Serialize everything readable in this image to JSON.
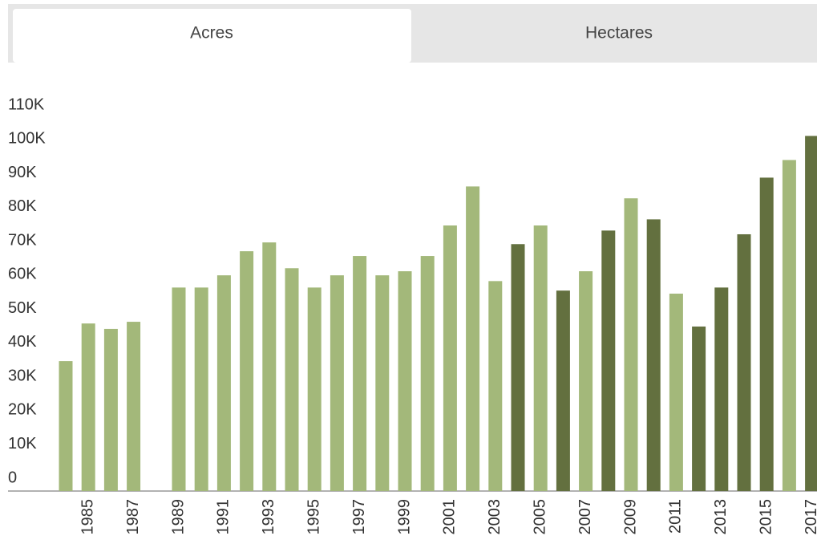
{
  "tabs": [
    "Acres",
    "Hectares"
  ],
  "chart_data": {
    "type": "bar",
    "categories": [
      null,
      "1985",
      null,
      "1987",
      null,
      "1989",
      null,
      "1991",
      null,
      "1993",
      null,
      "1995",
      null,
      "1997",
      null,
      "1999",
      null,
      "2001",
      null,
      "2003",
      null,
      "2005",
      null,
      "2007",
      null,
      "2009",
      null,
      "2011",
      null,
      "2013",
      null,
      "2015",
      null,
      "2017"
    ],
    "values": [
      38300,
      49400,
      47800,
      49900,
      null,
      60000,
      60000,
      63600,
      70700,
      73300,
      65700,
      60000,
      63600,
      69300,
      63600,
      64800,
      69300,
      78300,
      89800,
      61900,
      72800,
      78300,
      59100,
      64800,
      76800,
      86300,
      80100,
      58200,
      48500,
      60000,
      75700,
      92400,
      97600,
      104700
    ],
    "colors": [
      "#a3b87a",
      "#a3b87a",
      "#a3b87a",
      "#a3b87a",
      null,
      "#a3b87a",
      "#a3b87a",
      "#a3b87a",
      "#a3b87a",
      "#a3b87a",
      "#a3b87a",
      "#a3b87a",
      "#a3b87a",
      "#a3b87a",
      "#a3b87a",
      "#a3b87a",
      "#a3b87a",
      "#a3b87a",
      "#a3b87a",
      "#a3b87a",
      "#63703f",
      "#a3b87a",
      "#63703f",
      "#a3b87a",
      "#63703f",
      "#a3b87a",
      "#63703f",
      "#a3b87a",
      "#63703f",
      "#63703f",
      "#63703f",
      "#63703f",
      "#a3b87a",
      "#63703f"
    ],
    "ylim": [
      0,
      110000
    ],
    "yticks": [
      0,
      {
        "value": 10000,
        "label": "10K"
      },
      {
        "value": 20000,
        "label": "20K"
      },
      {
        "value": 30000,
        "label": "30K"
      },
      {
        "value": 40000,
        "label": "40K"
      },
      {
        "value": 50000,
        "label": "50K"
      },
      {
        "value": 60000,
        "label": "60K"
      },
      {
        "value": 70000,
        "label": "70K"
      },
      {
        "value": 80000,
        "label": "80K"
      },
      {
        "value": 90000,
        "label": "90K"
      },
      {
        "value": 100000,
        "label": "100K"
      },
      {
        "value": 110000,
        "label": "110K"
      }
    ],
    "grid": false
  }
}
